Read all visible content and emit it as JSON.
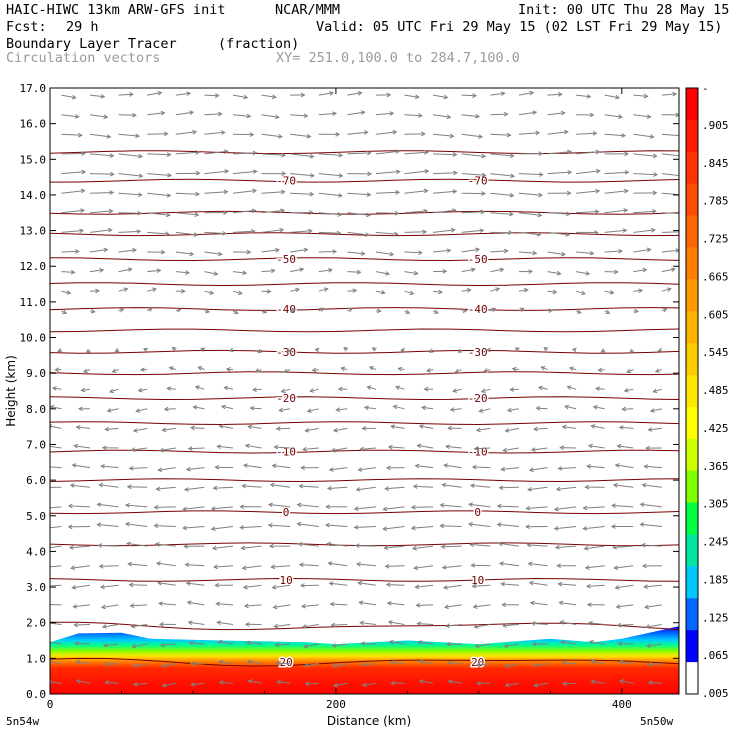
{
  "header": {
    "model": "HAIC-HIWC 13km ARW-GFS init",
    "org": "NCAR/MMM",
    "init": "Init: 00 UTC Thu 28 May 15",
    "fcst_label": "Fcst:",
    "fcst_value": "29 h",
    "valid": "Valid: 05 UTC Fri 29 May 15 (02 LST Fri 29 May 15)",
    "field": "Boundary Layer Tracer",
    "units": "(fraction)",
    "vectors": "Circulation vectors",
    "xy": "XY= 251.0,100.0 to 284.7,100.0"
  },
  "chart_data": {
    "type": "heatmap",
    "xlabel": "Distance (km)",
    "ylabel": "Height (km)",
    "xlim": [
      0,
      440
    ],
    "ylim": [
      0,
      17
    ],
    "x_ticks": [
      0,
      200,
      400
    ],
    "y_ticks": [
      "0.0",
      "1.0",
      "2.0",
      "3.0",
      "4.0",
      "5.0",
      "6.0",
      "7.0",
      "8.0",
      "9.0",
      "10.0",
      "11.0",
      "12.0",
      "13.0",
      "14.0",
      "15.0",
      "16.0",
      "17.0"
    ],
    "x_end_labels": {
      "left": "5n54w",
      "right": "5n50w"
    },
    "colorbar_labels": [
      "-",
      ".905",
      ".845",
      ".785",
      ".725",
      ".665",
      ".605",
      ".545",
      ".485",
      ".425",
      ".365",
      ".305",
      ".245",
      ".185",
      ".125",
      ".065",
      ".005"
    ],
    "colorbar_colors": [
      "#ff0000",
      "#ff1a00",
      "#ff3300",
      "#ff4d00",
      "#ff6600",
      "#ff8000",
      "#ff9900",
      "#ffb300",
      "#ffcc00",
      "#ffe600",
      "#ffff00",
      "#ccff00",
      "#80ff00",
      "#00ff44",
      "#00e6a0",
      "#00c8ff",
      "#0066ff",
      "#0000ff",
      "#ffffff"
    ],
    "tracer_top_km": [
      [
        0,
        1.45
      ],
      [
        20,
        1.7
      ],
      [
        50,
        1.72
      ],
      [
        70,
        1.55
      ],
      [
        120,
        1.5
      ],
      [
        180,
        1.45
      ],
      [
        200,
        1.4
      ],
      [
        250,
        1.5
      ],
      [
        300,
        1.4
      ],
      [
        350,
        1.55
      ],
      [
        380,
        1.45
      ],
      [
        400,
        1.55
      ],
      [
        440,
        1.9
      ]
    ],
    "temperature_contours": [
      {
        "label": "20",
        "height_km": 0.9
      },
      {
        "label": "10",
        "height_km": 3.2
      },
      {
        "label": "0",
        "height_km": 5.1
      },
      {
        "label": "-10",
        "height_km": 6.8
      },
      {
        "label": "-20",
        "height_km": 8.3
      },
      {
        "label": "-30",
        "height_km": 9.6
      },
      {
        "label": "-40",
        "height_km": 10.8
      },
      {
        "label": "-50",
        "height_km": 12.2
      },
      {
        "label": "-70",
        "height_km": 14.4
      }
    ],
    "wind_u_profile": [
      {
        "height_km": 0.5,
        "u": -0.6
      },
      {
        "height_km": 3.0,
        "u": -0.8
      },
      {
        "height_km": 5.0,
        "u": -1.0
      },
      {
        "height_km": 7.0,
        "u": -0.7
      },
      {
        "height_km": 9.5,
        "u": -0.2
      },
      {
        "height_km": 11.0,
        "u": 0.3
      },
      {
        "height_km": 13.0,
        "u": 1.0
      },
      {
        "height_km": 15.0,
        "u": 1.1
      },
      {
        "height_km": 17.0,
        "u": 0.6
      }
    ]
  }
}
